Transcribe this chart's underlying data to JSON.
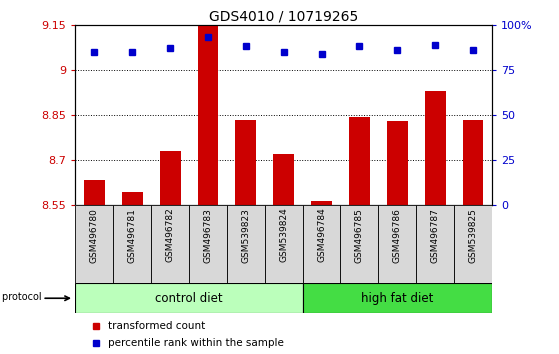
{
  "title": "GDS4010 / 10719265",
  "samples": [
    "GSM496780",
    "GSM496781",
    "GSM496782",
    "GSM496783",
    "GSM539823",
    "GSM539824",
    "GSM496784",
    "GSM496785",
    "GSM496786",
    "GSM496787",
    "GSM539825"
  ],
  "transformed_count": [
    8.635,
    8.595,
    8.73,
    9.145,
    8.835,
    8.72,
    8.565,
    8.845,
    8.83,
    8.93,
    8.835
  ],
  "percentile_rank": [
    85,
    85,
    87,
    93,
    88,
    85,
    84,
    88,
    86,
    89,
    86
  ],
  "ylim_left": [
    8.55,
    9.15
  ],
  "ylim_right": [
    0,
    100
  ],
  "yticks_left": [
    8.55,
    8.7,
    8.85,
    9.0,
    9.15
  ],
  "yticks_right": [
    0,
    25,
    50,
    75,
    100
  ],
  "ytick_labels_left": [
    "8.55",
    "8.7",
    "8.85",
    "9",
    "9.15"
  ],
  "ytick_labels_right": [
    "0",
    "25",
    "50",
    "75",
    "100%"
  ],
  "bar_color": "#cc0000",
  "dot_color": "#0000cc",
  "control_diet_count": 6,
  "high_fat_diet_count": 5,
  "control_diet_label": "control diet",
  "high_fat_diet_label": "high fat diet",
  "control_diet_color": "#bbffbb",
  "high_fat_diet_color": "#44dd44",
  "growth_protocol_label": "growth protocol",
  "legend_bar_label": "transformed count",
  "legend_dot_label": "percentile rank within the sample",
  "bar_color_legend": "#cc0000",
  "dot_color_legend": "#0000cc",
  "left_color": "#cc0000",
  "right_color": "#0000cc",
  "cell_bg": "#d8d8d8",
  "plot_bg": "#ffffff"
}
